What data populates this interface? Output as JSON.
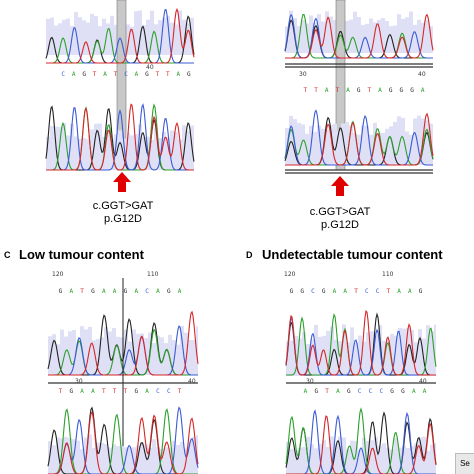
{
  "panels": {
    "A": {
      "mutation_line1": "c.GGT>GAT",
      "mutation_line2": "p.G12D",
      "pos_top": "40"
    },
    "B": {
      "mutation_line1": "c.GGT>GAT",
      "mutation_line2": "p.G12D",
      "pos_mid_left": "30",
      "pos_mid_right": "40"
    },
    "C": {
      "letter": "C",
      "title": "Low tumour content",
      "pos_top_left": "120",
      "pos_top_right": "110",
      "pos_mid_left": "30",
      "pos_mid_right": "40"
    },
    "D": {
      "letter": "D",
      "title": "Undetectable tumour content",
      "pos_top_left": "120",
      "pos_top_right": "110",
      "pos_mid_left": "30",
      "pos_mid_right": "40"
    }
  },
  "corner_tag": "Se",
  "colors": {
    "base_A": "#2ca02c",
    "base_C": "#3b5bd6",
    "base_G": "#222222",
    "base_T": "#d62728",
    "highlight": "#c8c8c8",
    "quality_bg": "#dfe0f5",
    "arrow": "#e00000"
  }
}
